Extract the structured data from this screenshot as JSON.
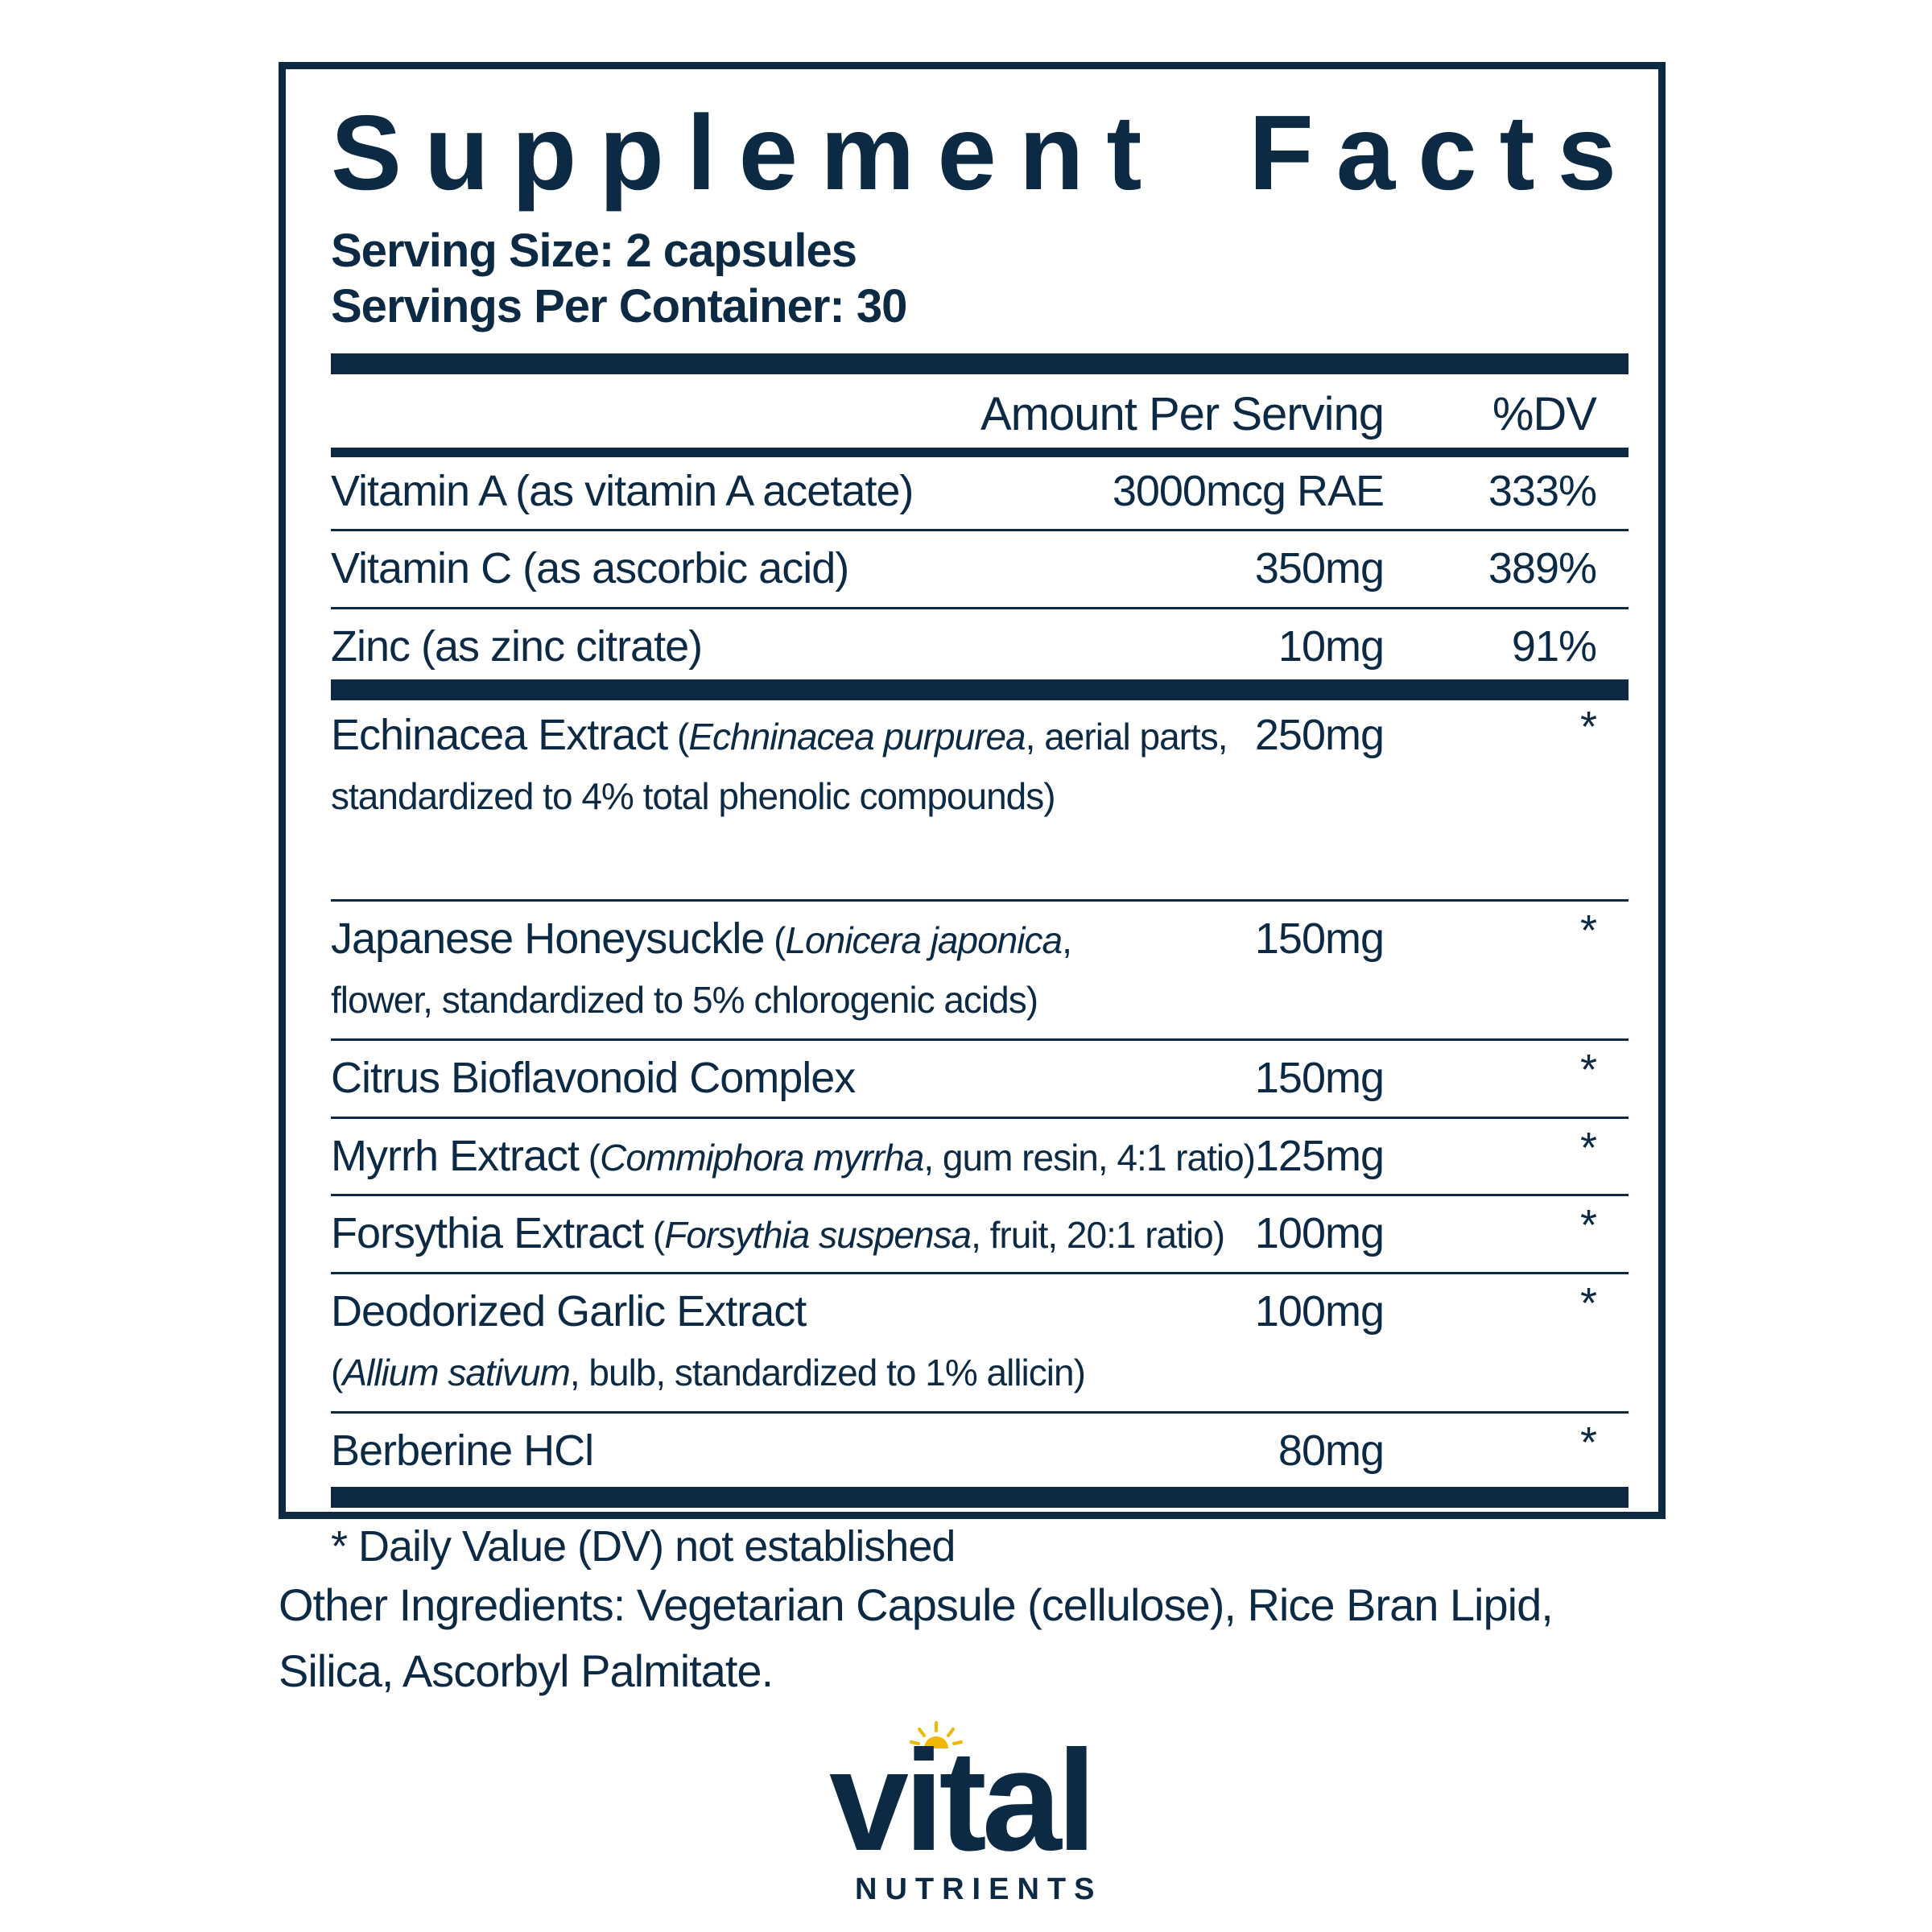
{
  "label": {
    "title_words": [
      "Supplement",
      "Facts"
    ],
    "serving_size": "Serving Size: 2 capsules",
    "servings_per_container": "Servings Per Container: 30",
    "col_amount": "Amount Per Serving",
    "col_dv": "%DV",
    "vitamins": [
      {
        "name": "Vitamin A (as vitamin A acetate)",
        "amount": "3000mcg RAE",
        "dv": "333%"
      },
      {
        "name": "Vitamin C (as ascorbic acid)",
        "amount": "350mg",
        "dv": "389%"
      },
      {
        "name": "Zinc (as zinc citrate)",
        "amount": "10mg",
        "dv": "91%"
      }
    ],
    "botanicals": [
      {
        "name": "Echinacea Extract",
        "pre": " (",
        "sci": "Echninacea purpurea",
        "post": ", aerial parts,",
        "line2": "standardized to 4% total phenolic compounds)",
        "amount": "250mg",
        "dv": "*"
      },
      {
        "name": "Japanese Honeysuckle",
        "pre": " (",
        "sci": "Lonicera japonica",
        "post": ",",
        "line2": "flower, standardized to 5% chlorogenic acids)",
        "amount": "150mg",
        "dv": "*"
      },
      {
        "name": "Citrus Bioflavonoid Complex",
        "pre": "",
        "sci": "",
        "post": "",
        "line2": "",
        "amount": "150mg",
        "dv": "*"
      },
      {
        "name": "Myrrh Extract",
        "pre": " (",
        "sci": "Commiphora myrrha",
        "post": ", gum resin, 4:1 ratio)",
        "line2": "",
        "amount": "125mg",
        "dv": "*"
      },
      {
        "name": "Forsythia Extract",
        "pre": " (",
        "sci": "Forsythia suspensa",
        "post": ", fruit, 20:1 ratio)",
        "line2": "",
        "amount": "100mg",
        "dv": "*"
      },
      {
        "name": "Deodorized Garlic Extract",
        "pre": "",
        "sci": "",
        "post": "",
        "line2_pre": "(",
        "line2_sci": "Allium sativum",
        "line2_post": ", bulb, standardized to 1% allicin)",
        "amount": "100mg",
        "dv": "*"
      },
      {
        "name": "Berberine HCl",
        "pre": "",
        "sci": "",
        "post": "",
        "line2": "",
        "amount": "80mg",
        "dv": "*"
      }
    ],
    "footnote": "* Daily Value (DV) not established"
  },
  "other_ingredients": "Other Ingredients: Vegetarian Capsule (cellulose), Rice Bran Lipid, Silica, Ascorbyl Palmitate.",
  "brand": {
    "word": "vital",
    "sub": "NUTRIENTS",
    "colors": {
      "navy": "#0d2a45",
      "sun": "#f2b705"
    }
  }
}
